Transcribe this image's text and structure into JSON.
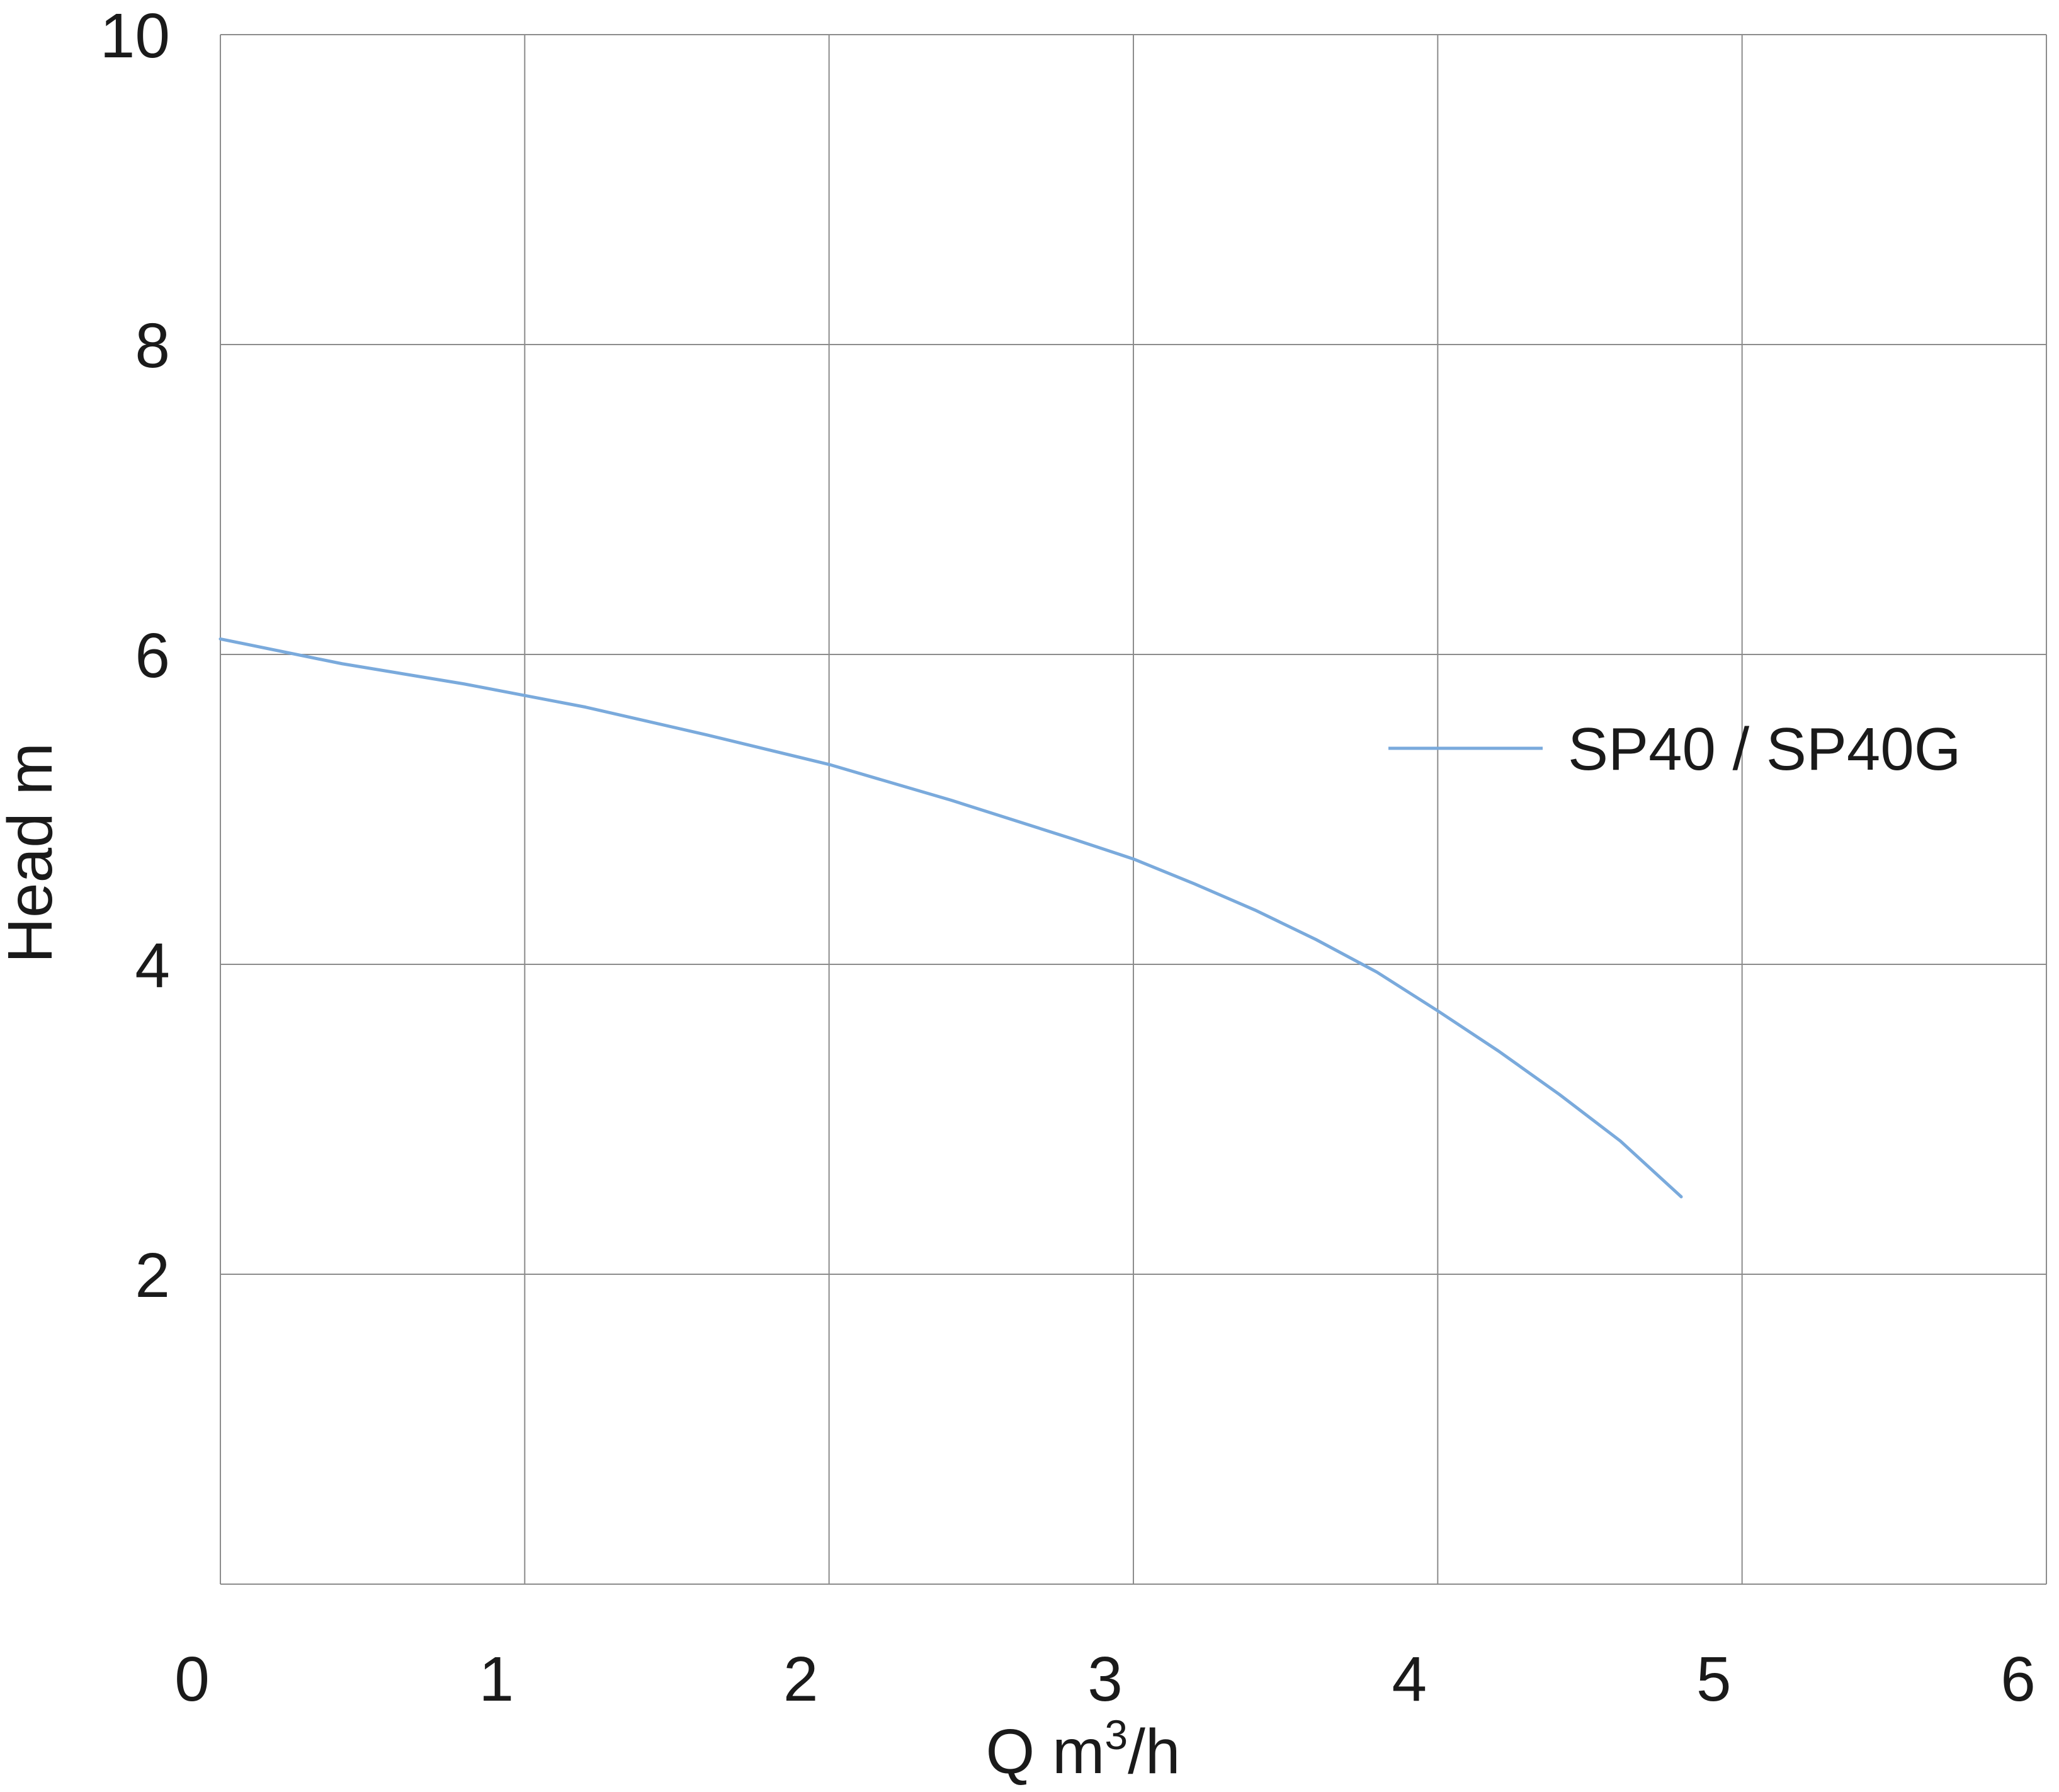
{
  "chart_data": {
    "type": "line",
    "title": "",
    "xlabel": "Q m³/h",
    "xlabel_parts": {
      "base": "Q m",
      "sup": "3",
      "tail": "/h"
    },
    "ylabel": "Head m",
    "xlim": [
      0,
      6
    ],
    "ylim": [
      0,
      10
    ],
    "x_ticks": [
      0,
      1,
      2,
      3,
      4,
      5,
      6
    ],
    "y_ticks": [
      2,
      4,
      6,
      8,
      10
    ],
    "grid": true,
    "legend_position": "right",
    "series": [
      {
        "name": "SP40 / SP40G",
        "color": "#7aaadc",
        "x": [
          0,
          0.4,
          0.8,
          1.2,
          1.6,
          2.0,
          2.4,
          2.8,
          3.0,
          3.2,
          3.4,
          3.6,
          3.8,
          4.0,
          4.2,
          4.4,
          4.6,
          4.8
        ],
        "y": [
          6.1,
          5.94,
          5.81,
          5.66,
          5.48,
          5.29,
          5.06,
          4.81,
          4.68,
          4.52,
          4.35,
          4.16,
          3.95,
          3.7,
          3.44,
          3.16,
          2.86,
          2.5
        ]
      }
    ]
  }
}
